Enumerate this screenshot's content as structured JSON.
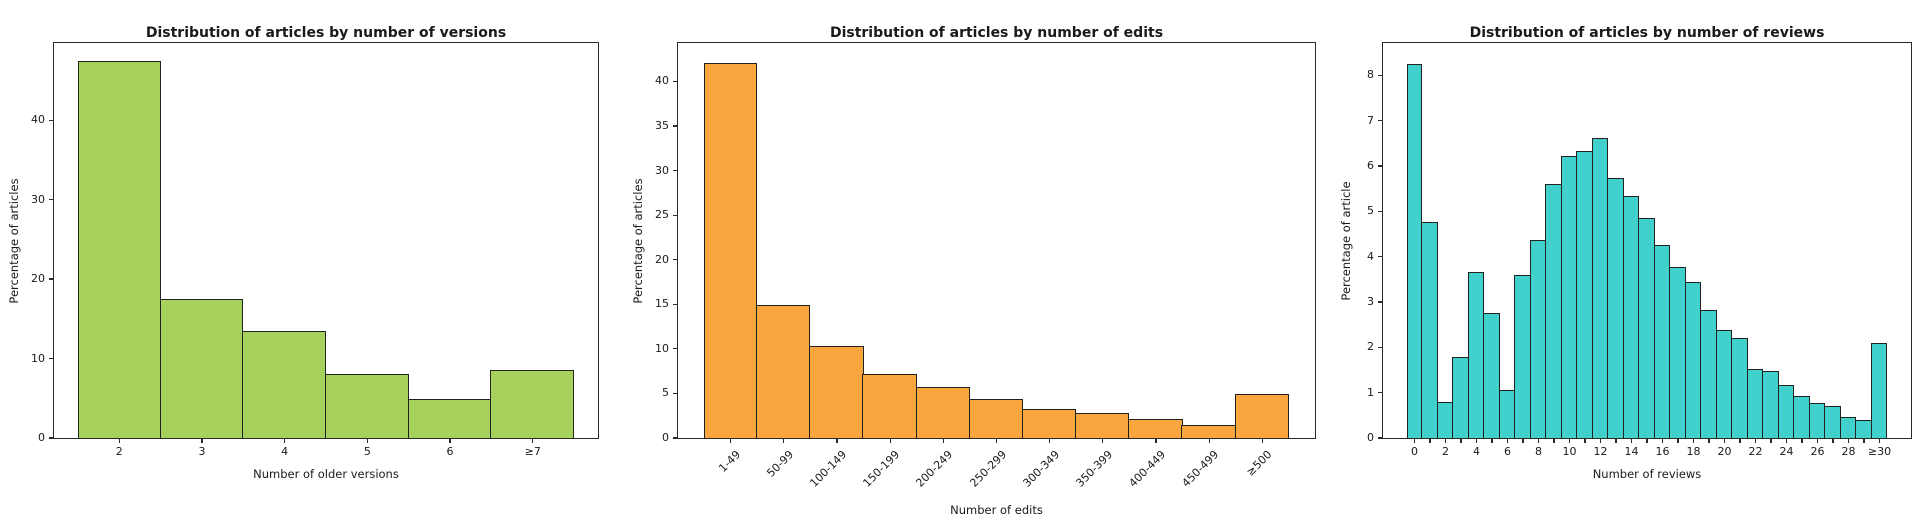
{
  "figure": {
    "background": "#ffffff"
  },
  "chart_data": [
    {
      "type": "bar",
      "title": "Distribution of articles by number of versions",
      "xlabel": "Number of older versions",
      "ylabel": "Percentage of articles",
      "bar_color": "#a5d15c",
      "bar_edge_color": "#222222",
      "categories": [
        "2",
        "3",
        "4",
        "5",
        "6",
        "≥7"
      ],
      "values": [
        47.5,
        17.5,
        13.5,
        8.0,
        4.9,
        8.5
      ],
      "ylim": [
        0,
        49.7
      ],
      "yticks": [
        0,
        10,
        20,
        30,
        40
      ],
      "xtick_positions": [
        0,
        1,
        2,
        3,
        4,
        5
      ],
      "xtick_labels": [
        "2",
        "3",
        "4",
        "5",
        "6",
        "≥7"
      ],
      "grid": false
    },
    {
      "type": "bar",
      "title": "Distribution of articles by number of edits",
      "xlabel": "Number of edits",
      "ylabel": "Percentage of articles",
      "bar_color": "#faa63e",
      "bar_edge_color": "#222222",
      "categories": [
        "1-49",
        "50-99",
        "100-149",
        "150-199",
        "200-249",
        "250-299",
        "300-349",
        "350-399",
        "400-449",
        "450-499",
        "≥500"
      ],
      "values": [
        42.1,
        14.9,
        10.3,
        7.2,
        5.7,
        4.4,
        3.2,
        2.8,
        2.1,
        1.5,
        4.9
      ],
      "ylim": [
        0,
        44.3
      ],
      "yticks": [
        0,
        5,
        10,
        15,
        20,
        25,
        30,
        35,
        40
      ],
      "xtick_positions": [
        0,
        1,
        2,
        3,
        4,
        5,
        6,
        7,
        8,
        9,
        10
      ],
      "xtick_labels": [
        "1-49",
        "50-99",
        "100-149",
        "150-199",
        "200-249",
        "250-299",
        "300-349",
        "350-399",
        "400-449",
        "450-499",
        "≥500"
      ],
      "grid": false
    },
    {
      "type": "bar",
      "title": "Distribution of articles by number of reviews",
      "xlabel": "Number of reviews",
      "ylabel": "Percentage of article",
      "bar_color": "#41d0cb",
      "bar_edge_color": "#222222",
      "categories": [
        "0",
        "1",
        "2",
        "3",
        "4",
        "5",
        "6",
        "7",
        "8",
        "9",
        "10",
        "11",
        "12",
        "13",
        "14",
        "15",
        "16",
        "17",
        "18",
        "19",
        "20",
        "21",
        "22",
        "23",
        "24",
        "25",
        "26",
        "27",
        "28",
        "29",
        "≥30"
      ],
      "values": [
        8.25,
        4.77,
        0.8,
        1.79,
        3.66,
        2.76,
        1.06,
        3.59,
        4.36,
        5.61,
        6.22,
        6.33,
        6.62,
        5.74,
        5.34,
        4.85,
        4.26,
        3.77,
        3.44,
        2.82,
        2.39,
        2.2,
        1.53,
        1.47,
        1.17,
        0.93,
        0.77,
        0.71,
        0.47,
        0.4,
        2.09
      ],
      "ylim": [
        0,
        8.71
      ],
      "yticks": [
        0,
        1,
        2,
        3,
        4,
        5,
        6,
        7,
        8
      ],
      "xtick_positions": [
        0,
        2,
        4,
        6,
        8,
        10,
        12,
        14,
        16,
        18,
        20,
        22,
        24,
        26,
        28,
        30
      ],
      "xtick_labels": [
        "0",
        "2",
        "4",
        "6",
        "8",
        "10",
        "12",
        "14",
        "16",
        "18",
        "20",
        "22",
        "24",
        "26",
        "28",
        "≥30"
      ],
      "grid": false
    }
  ]
}
